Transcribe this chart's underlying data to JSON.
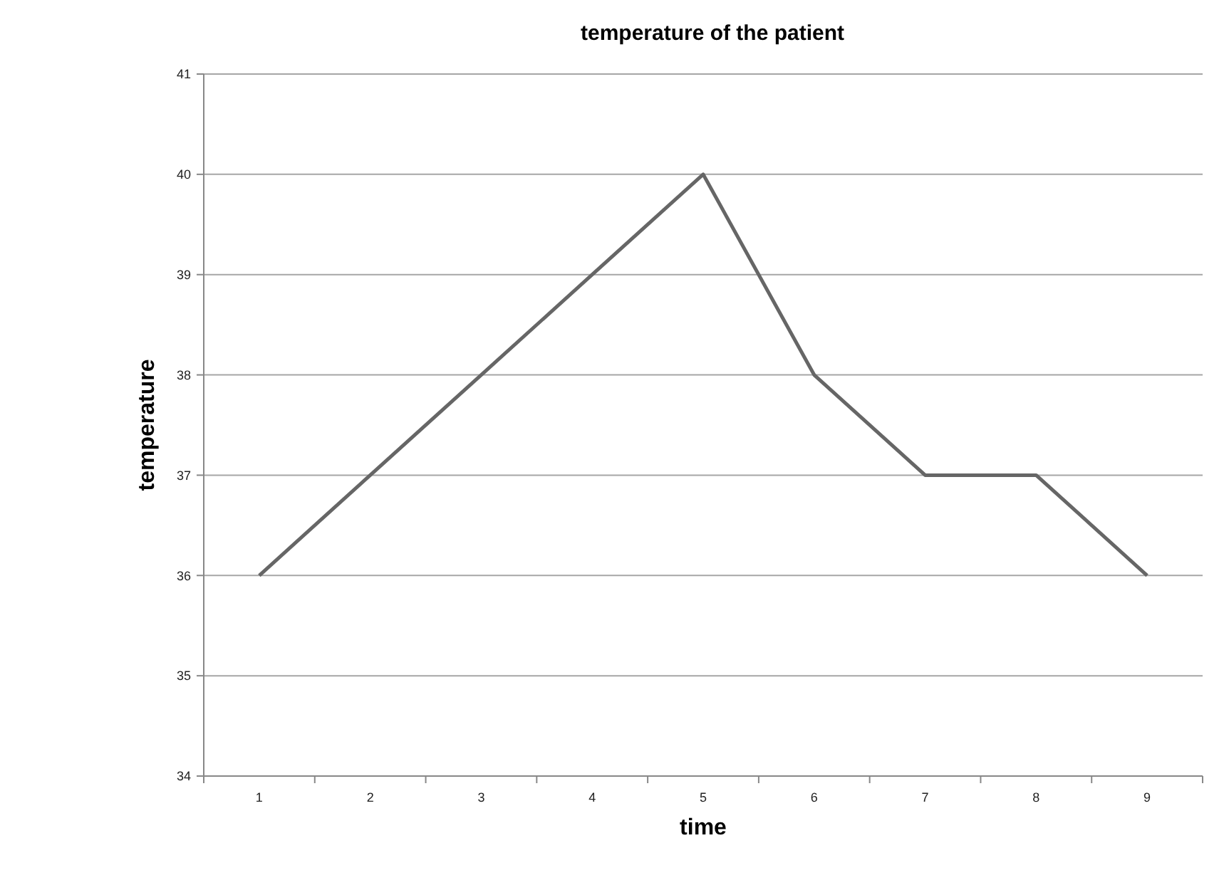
{
  "chart_data": {
    "type": "line",
    "title": "temperature of the patient",
    "xlabel": "time",
    "ylabel": "temperature",
    "categories": [
      "1",
      "2",
      "3",
      "4",
      "5",
      "6",
      "7",
      "8",
      "9"
    ],
    "series": [
      {
        "color": "#666666",
        "values": [
          36,
          37,
          38,
          39,
          40,
          38,
          37,
          37,
          36
        ]
      }
    ],
    "ylim": [
      34,
      41
    ],
    "yticks": [
      34,
      35,
      36,
      37,
      38,
      39,
      40,
      41
    ],
    "grid": "y",
    "marker": "none",
    "line_style": "solid"
  }
}
